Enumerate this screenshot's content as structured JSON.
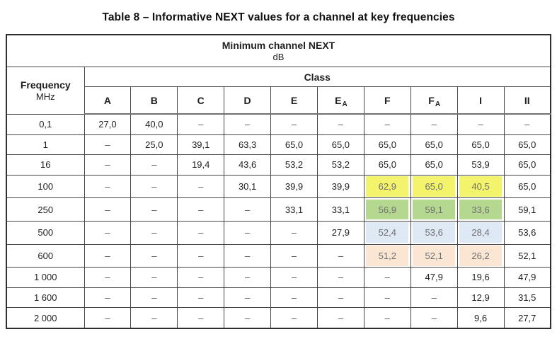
{
  "title": "Table 8 – Informative NEXT values for a channel at key frequencies",
  "table": {
    "header": {
      "top": "Minimum channel NEXT",
      "unit": "dB",
      "freq_label": "Frequency",
      "freq_unit": "MHz",
      "class_label": "Class"
    },
    "columns": [
      {
        "base": "A"
      },
      {
        "base": "B"
      },
      {
        "base": "C"
      },
      {
        "base": "D"
      },
      {
        "base": "E"
      },
      {
        "base": "E",
        "sub": "A"
      },
      {
        "base": "F"
      },
      {
        "base": "F",
        "sub": "A"
      },
      {
        "base": "I"
      },
      {
        "base": "II"
      }
    ],
    "rows": [
      {
        "freq": "0,1",
        "values": [
          "27,0",
          "40,0",
          "–",
          "–",
          "–",
          "–",
          "–",
          "–",
          "–",
          "–"
        ]
      },
      {
        "freq": "1",
        "values": [
          "–",
          "25,0",
          "39,1",
          "63,3",
          "65,0",
          "65,0",
          "65,0",
          "65,0",
          "65,0",
          "65,0"
        ]
      },
      {
        "freq": "16",
        "values": [
          "–",
          "–",
          "19,4",
          "43,6",
          "53,2",
          "53,2",
          "65,0",
          "65,0",
          "53,9",
          "65,0"
        ]
      },
      {
        "freq": "100",
        "values": [
          "–",
          "–",
          "–",
          "30,1",
          "39,9",
          "39,9",
          {
            "v": "62,9",
            "hl": "yellow"
          },
          {
            "v": "65,0",
            "hl": "yellow"
          },
          {
            "v": "40,5",
            "hl": "yellow"
          },
          "65,0"
        ]
      },
      {
        "freq": "250",
        "values": [
          "–",
          "–",
          "–",
          "–",
          "33,1",
          "33,1",
          {
            "v": "56,9",
            "hl": "green"
          },
          {
            "v": "59,1",
            "hl": "green"
          },
          {
            "v": "33,6",
            "hl": "green"
          },
          "59,1"
        ]
      },
      {
        "freq": "500",
        "values": [
          "–",
          "–",
          "–",
          "–",
          "–",
          "27,9",
          {
            "v": "52,4",
            "hl": "blue"
          },
          {
            "v": "53,6",
            "hl": "blue"
          },
          {
            "v": "28,4",
            "hl": "blue"
          },
          "53,6"
        ]
      },
      {
        "freq": "600",
        "values": [
          "–",
          "–",
          "–",
          "–",
          "–",
          "–",
          {
            "v": "51,2",
            "hl": "peach"
          },
          {
            "v": "52,1",
            "hl": "peach"
          },
          {
            "v": "26,2",
            "hl": "peach"
          },
          "52,1"
        ]
      },
      {
        "freq": "1 000",
        "values": [
          "–",
          "–",
          "–",
          "–",
          "–",
          "–",
          "–",
          "47,9",
          "19,6",
          "47,9"
        ]
      },
      {
        "freq": "1 600",
        "values": [
          "–",
          "–",
          "–",
          "–",
          "–",
          "–",
          "–",
          "–",
          "12,9",
          "31,5"
        ]
      },
      {
        "freq": "2 000",
        "values": [
          "–",
          "–",
          "–",
          "–",
          "–",
          "–",
          "–",
          "–",
          "9,6",
          "27,7"
        ]
      }
    ]
  },
  "colors": {
    "highlight_yellow": "#f4f46c",
    "highlight_green": "#b4d890",
    "highlight_blue": "#dfe9f6",
    "highlight_peach": "#fbe6d4",
    "highlight_text": "#6f6f6f",
    "border": "#2f2f2f"
  }
}
